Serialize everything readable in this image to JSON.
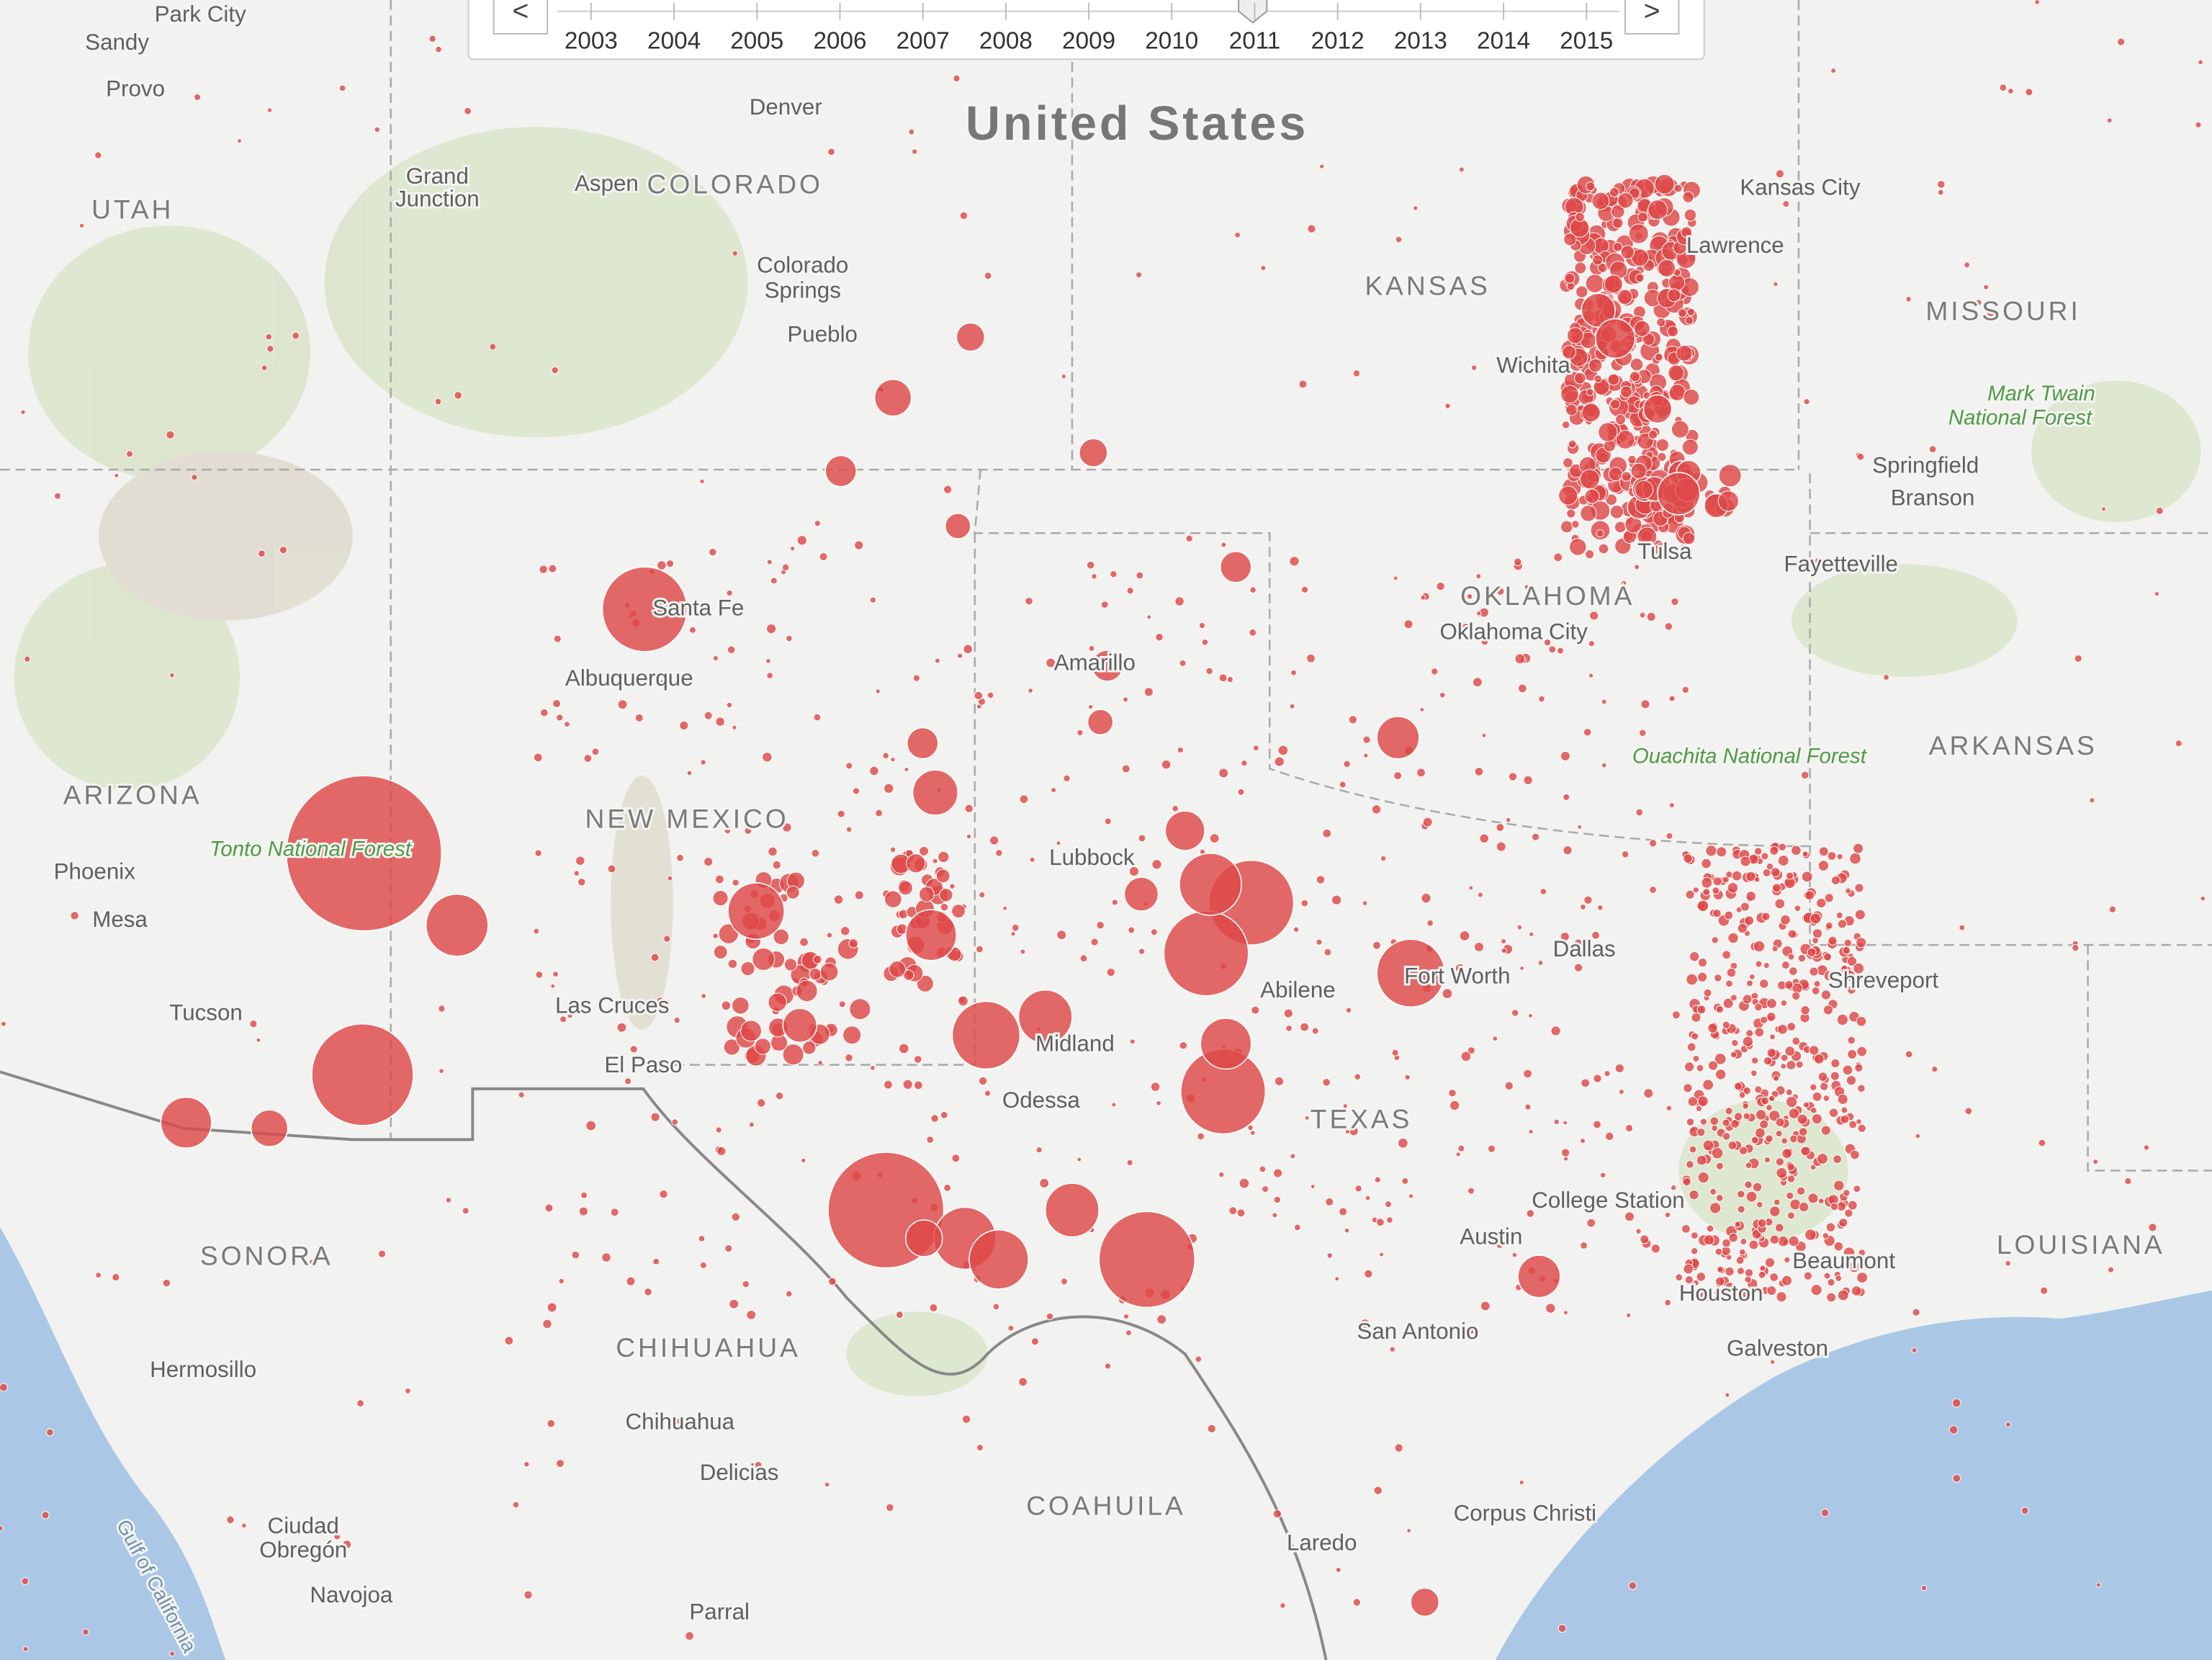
{
  "timeline": {
    "prev": "<",
    "next": ">",
    "years": [
      "2003",
      "2004",
      "2005",
      "2006",
      "2007",
      "2008",
      "2009",
      "2010",
      "2011",
      "2012",
      "2013",
      "2014",
      "2015"
    ]
  },
  "map_labels": {
    "countries": [
      "United States"
    ],
    "states": [
      "UTAH",
      "COLORADO",
      "KANSAS",
      "MISSOURI",
      "OKLAHOMA",
      "ARKANSAS",
      "ARIZONA",
      "NEW MEXICO",
      "TEXAS",
      "SONORA",
      "LOUISIANA",
      "CHIHUAHUA",
      "COAHUILA"
    ],
    "cities": [
      "Park City",
      "Sandy",
      "Provo",
      "Denver",
      "Kansas City",
      "Lawrence",
      "Grand",
      "Junction",
      "Aspen",
      "Colorado",
      "Springs",
      "Pueblo",
      "Wichita",
      "Springfield",
      "Branson",
      "Tulsa",
      "Fayetteville",
      "Oklahoma City",
      "Santa Fe",
      "Albuquerque",
      "Amarillo",
      "Phoenix",
      "Mesa",
      "Lubbock",
      "Dallas",
      "Fort Worth",
      "Shreveport",
      "Abilene",
      "Tucson",
      "Las Cruces",
      "Midland",
      "El Paso",
      "Odessa",
      "College Station",
      "Austin",
      "Beaumont",
      "Houston",
      "San Antonio",
      "Galveston",
      "Hermosillo",
      "Chihuahua",
      "Delicias",
      "Corpus Christi",
      "Laredo",
      "Ciudad",
      "Obregón",
      "Navojoa",
      "Parral"
    ],
    "parks": [
      "Mark Twain",
      "National Forest",
      "Ouachita National Forest",
      "Tonto National Forest"
    ],
    "water": [
      "Gulf of California"
    ]
  }
}
